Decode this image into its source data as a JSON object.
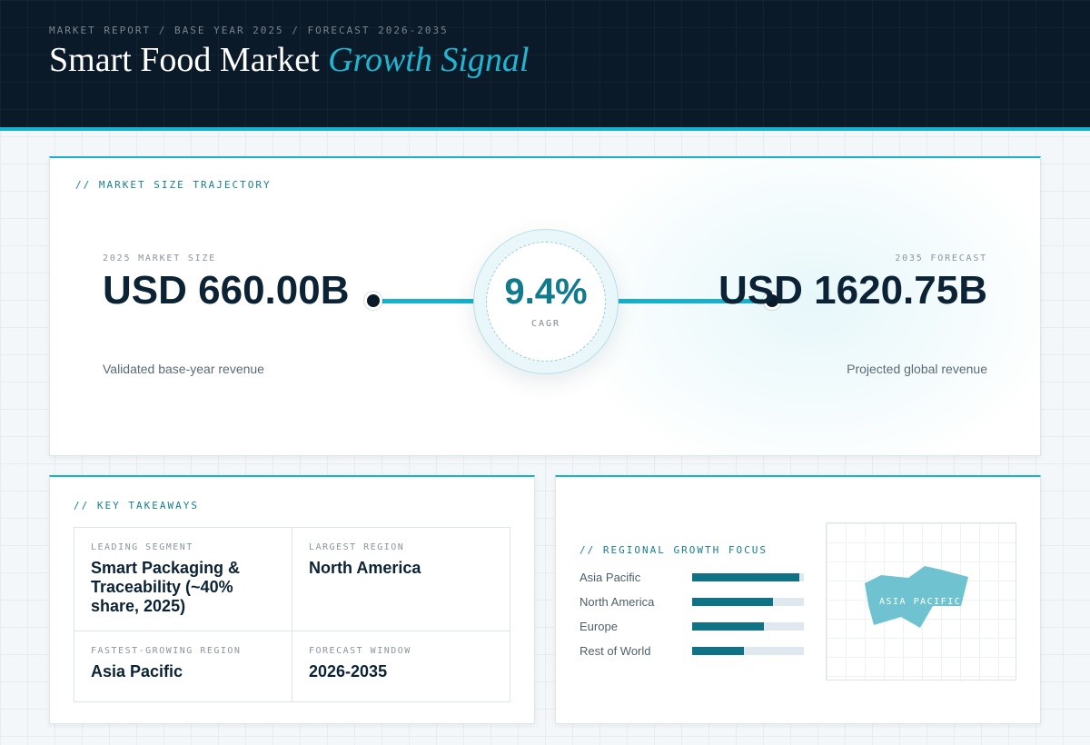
{
  "header": {
    "eyebrow": "MARKET REPORT / BASE YEAR 2025 / FORECAST 2026-2035",
    "title_main": "Smart Food Market",
    "title_accent": "Growth Signal"
  },
  "trajectory": {
    "section_label": "// MARKET SIZE TRAJECTORY",
    "base": {
      "label": "2025 MARKET SIZE",
      "value": "USD 660.00B",
      "caption": "Validated base-year revenue"
    },
    "cagr": {
      "value": "9.4%",
      "label": "CAGR"
    },
    "forecast": {
      "label": "2035 FORECAST",
      "value": "USD 1620.75B",
      "caption": "Projected global revenue"
    }
  },
  "takeaways": {
    "section_label": "// KEY TAKEAWAYS",
    "leading_segment": {
      "label": "LEADING SEGMENT",
      "value": "Smart Packaging & Traceability (~40% share, 2025)"
    },
    "largest_region": {
      "label": "LARGEST REGION",
      "value": "North America"
    },
    "fastest_region": {
      "label": "FASTEST-GROWING REGION",
      "value": "Asia Pacific"
    },
    "forecast_window": {
      "label": "FORECAST WINDOW",
      "value": "2026-2035"
    }
  },
  "regional": {
    "section_label": "// REGIONAL GROWTH FOCUS",
    "regions": [
      {
        "name": "Asia Pacific",
        "level": 0.96
      },
      {
        "name": "North America",
        "level": 0.72
      },
      {
        "name": "Europe",
        "level": 0.64
      },
      {
        "name": "Rest of World",
        "level": 0.46
      }
    ],
    "map_label": "ASIA PACIFIC"
  },
  "colors": {
    "accent": "#14b2cf",
    "header_bg": "#0b1a28",
    "bar_fill": "#0f7285",
    "map_region": "#6fc2d0"
  }
}
